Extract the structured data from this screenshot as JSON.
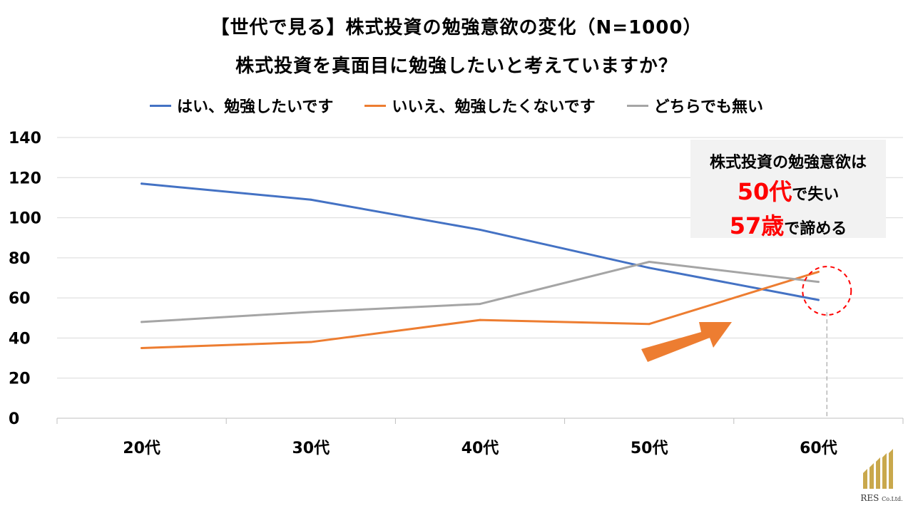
{
  "chart_data": {
    "type": "line",
    "title": "【世代で見る】株式投資の勉強意欲の変化（N=1000）",
    "subtitle": "株式投資を真面目に勉強したいと考えていますか？",
    "categories": [
      "20代",
      "30代",
      "40代",
      "50代",
      "60代"
    ],
    "series": [
      {
        "name": "はい、勉強したいです",
        "color": "#4472c4",
        "values": [
          117,
          109,
          94,
          75,
          59
        ]
      },
      {
        "name": "いいえ、勉強したくないです",
        "color": "#ed7d31",
        "values": [
          35,
          38,
          49,
          47,
          73
        ]
      },
      {
        "name": "どちらでも無い",
        "color": "#a5a5a5",
        "values": [
          48,
          53,
          57,
          78,
          68
        ]
      }
    ],
    "ylim": [
      0,
      140
    ],
    "yticks": [
      "0",
      "20",
      "40",
      "60",
      "80",
      "100",
      "120",
      "140"
    ],
    "grid": true,
    "legend": "top",
    "annotation": {
      "crossover_category_position": 4.55,
      "crossover_value": 65
    }
  },
  "callout": {
    "line1": "株式投資の勉強意欲は",
    "line2_highlight": "50代",
    "line2_rest": "で失い",
    "line3_highlight": "57歳",
    "line3_rest": "で諦める"
  },
  "logo": {
    "text": "RES",
    "suffix": "Co.Ltd."
  }
}
